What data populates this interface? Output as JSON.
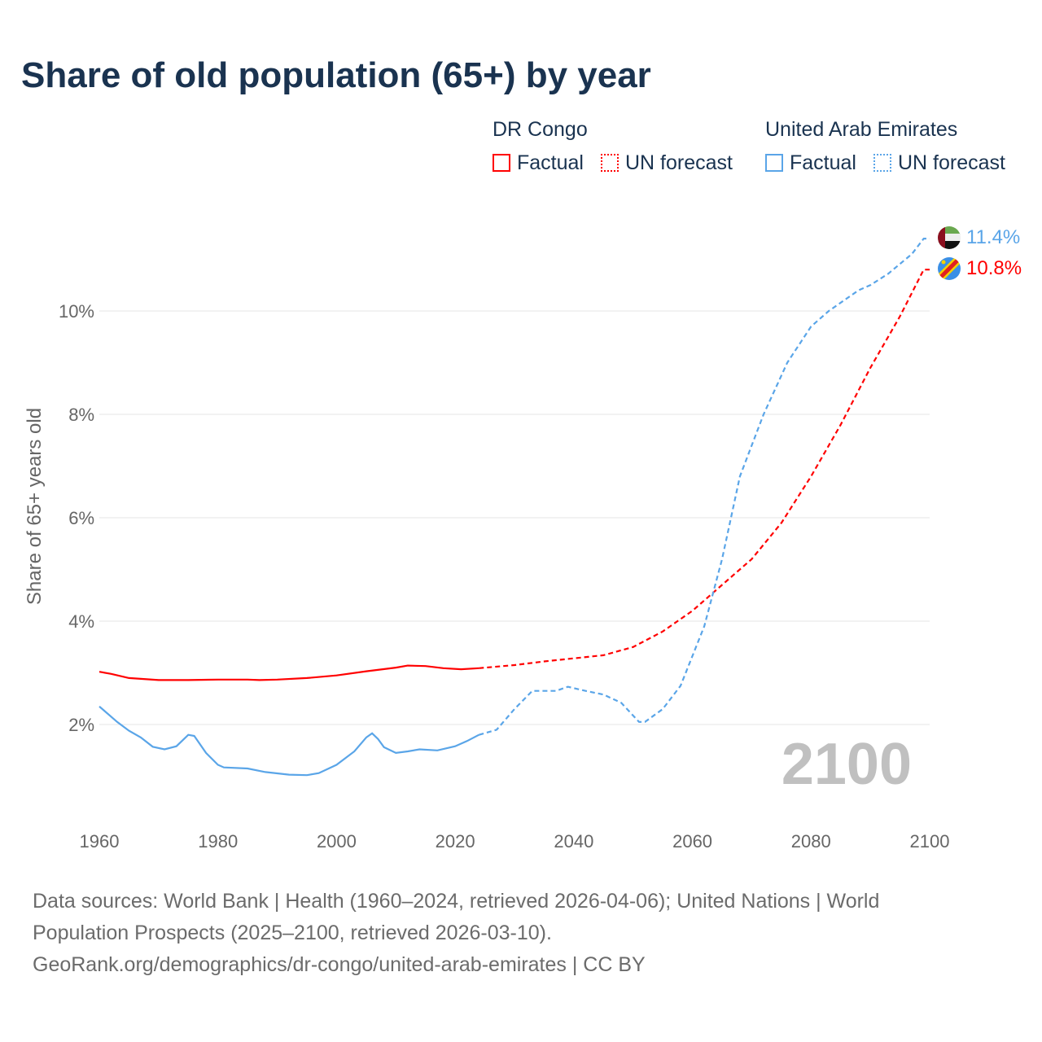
{
  "chart_data": {
    "type": "line",
    "title": "Share of old population (65+) by year",
    "ylabel": "Share of 65+ years old",
    "xlim": [
      1960,
      2100
    ],
    "ylim": [
      0,
      12
    ],
    "x_ticks": [
      "1960",
      "1980",
      "2000",
      "2020",
      "2040",
      "2060",
      "2080",
      "2100"
    ],
    "y_ticks": [
      "2%",
      "4%",
      "6%",
      "8%",
      "10%"
    ],
    "year_label": "2100",
    "legend": {
      "groups": [
        {
          "name": "DR Congo",
          "factual": "Factual",
          "forecast": "UN forecast"
        },
        {
          "name": "United Arab Emirates",
          "factual": "Factual",
          "forecast": "UN forecast"
        }
      ]
    },
    "series": [
      {
        "name": "DR Congo",
        "color": "#ff0000",
        "end_label": "10.8%",
        "factual": [
          [
            1960,
            3.02
          ],
          [
            1962,
            2.98
          ],
          [
            1965,
            2.9
          ],
          [
            1970,
            2.86
          ],
          [
            1975,
            2.86
          ],
          [
            1980,
            2.87
          ],
          [
            1985,
            2.87
          ],
          [
            1987,
            2.86
          ],
          [
            1990,
            2.87
          ],
          [
            1995,
            2.9
          ],
          [
            2000,
            2.95
          ],
          [
            2005,
            3.03
          ],
          [
            2010,
            3.1
          ],
          [
            2012,
            3.14
          ],
          [
            2015,
            3.13
          ],
          [
            2018,
            3.09
          ],
          [
            2021,
            3.07
          ],
          [
            2024,
            3.09
          ]
        ],
        "forecast": [
          [
            2024,
            3.09
          ],
          [
            2030,
            3.15
          ],
          [
            2035,
            3.22
          ],
          [
            2040,
            3.28
          ],
          [
            2045,
            3.34
          ],
          [
            2050,
            3.5
          ],
          [
            2055,
            3.8
          ],
          [
            2060,
            4.2
          ],
          [
            2065,
            4.7
          ],
          [
            2070,
            5.2
          ],
          [
            2075,
            5.9
          ],
          [
            2080,
            6.8
          ],
          [
            2085,
            7.8
          ],
          [
            2090,
            8.9
          ],
          [
            2095,
            9.9
          ],
          [
            2099,
            10.8
          ],
          [
            2100,
            10.8
          ]
        ]
      },
      {
        "name": "United Arab Emirates",
        "color": "#5aa5e8",
        "end_label": "11.4%",
        "factual": [
          [
            1960,
            2.35
          ],
          [
            1963,
            2.05
          ],
          [
            1965,
            1.88
          ],
          [
            1967,
            1.75
          ],
          [
            1969,
            1.57
          ],
          [
            1971,
            1.52
          ],
          [
            1973,
            1.58
          ],
          [
            1975,
            1.8
          ],
          [
            1976,
            1.78
          ],
          [
            1978,
            1.45
          ],
          [
            1980,
            1.22
          ],
          [
            1981,
            1.17
          ],
          [
            1985,
            1.15
          ],
          [
            1988,
            1.08
          ],
          [
            1992,
            1.03
          ],
          [
            1995,
            1.02
          ],
          [
            1997,
            1.06
          ],
          [
            2000,
            1.22
          ],
          [
            2003,
            1.48
          ],
          [
            2005,
            1.75
          ],
          [
            2006,
            1.83
          ],
          [
            2007,
            1.72
          ],
          [
            2008,
            1.56
          ],
          [
            2010,
            1.45
          ],
          [
            2012,
            1.48
          ],
          [
            2014,
            1.52
          ],
          [
            2017,
            1.5
          ],
          [
            2020,
            1.58
          ],
          [
            2022,
            1.68
          ],
          [
            2024,
            1.8
          ]
        ],
        "forecast": [
          [
            2024,
            1.8
          ],
          [
            2027,
            1.9
          ],
          [
            2030,
            2.3
          ],
          [
            2033,
            2.65
          ],
          [
            2037,
            2.65
          ],
          [
            2039,
            2.73
          ],
          [
            2042,
            2.65
          ],
          [
            2045,
            2.58
          ],
          [
            2048,
            2.42
          ],
          [
            2051,
            2.05
          ],
          [
            2052,
            2.05
          ],
          [
            2055,
            2.3
          ],
          [
            2058,
            2.75
          ],
          [
            2062,
            3.9
          ],
          [
            2065,
            5.2
          ],
          [
            2068,
            6.8
          ],
          [
            2072,
            8.0
          ],
          [
            2076,
            9.0
          ],
          [
            2080,
            9.7
          ],
          [
            2083,
            10.0
          ],
          [
            2088,
            10.4
          ],
          [
            2090,
            10.5
          ],
          [
            2093,
            10.72
          ],
          [
            2097,
            11.1
          ],
          [
            2099,
            11.4
          ],
          [
            2100,
            11.4
          ]
        ]
      }
    ]
  },
  "footer": {
    "line1": "Data sources: World Bank | Health (1960–2024, retrieved 2026-04-06); United Nations | World",
    "line2": "Population Prospects (2025–2100, retrieved 2026-03-10).",
    "line3": "GeoRank.org/demographics/dr-congo/united-arab-emirates | CC BY"
  }
}
